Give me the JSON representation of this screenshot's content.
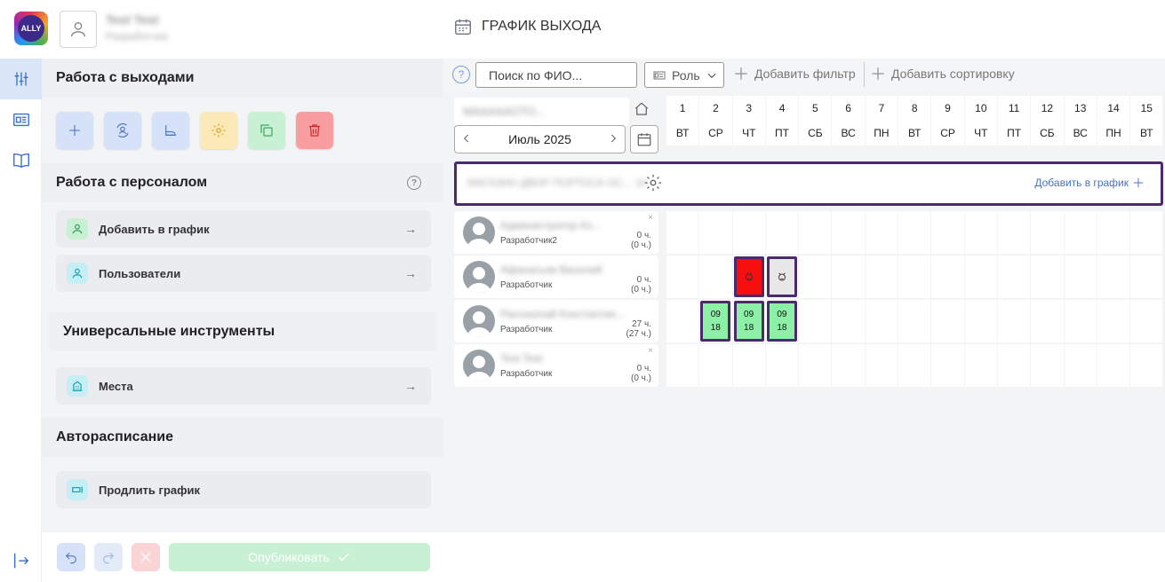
{
  "header": {
    "logo_text": "ALLY",
    "user_name": "Test Test",
    "user_role": "Разработчик",
    "title": "ГРАФИК ВЫХОДА"
  },
  "sidebar": {
    "section1_title": "Работа с выходами",
    "section2_title": "Работа с персоналом",
    "help_glyph": "?",
    "items_personnel": [
      {
        "label": "Добавить в график",
        "icon": "user-plus-icon"
      },
      {
        "label": "Пользователи",
        "icon": "users-icon"
      }
    ],
    "section3_title": "Универсальные инструменты",
    "places_label": "Места",
    "section4_title": "Авторасписание",
    "extend_label": "Продлить график",
    "publish_label": "Опубликовать"
  },
  "filters": {
    "help_glyph": "?",
    "search_placeholder": "Поиск по ФИО...",
    "role_label": "Роль",
    "add_filter_label": "Добавить фильтр",
    "add_sort_label": "Добавить сортировку"
  },
  "schedule": {
    "org_name": "МАААААОТО...",
    "month_label": "Июль 2025",
    "days": [
      {
        "num": "1",
        "wd": "ВТ"
      },
      {
        "num": "2",
        "wd": "СР"
      },
      {
        "num": "3",
        "wd": "ЧТ"
      },
      {
        "num": "4",
        "wd": "ПТ"
      },
      {
        "num": "5",
        "wd": "СБ"
      },
      {
        "num": "6",
        "wd": "ВС"
      },
      {
        "num": "7",
        "wd": "ПН"
      },
      {
        "num": "8",
        "wd": "ВТ"
      },
      {
        "num": "9",
        "wd": "СР"
      },
      {
        "num": "10",
        "wd": "ЧТ"
      },
      {
        "num": "11",
        "wd": "ПТ"
      },
      {
        "num": "12",
        "wd": "СБ"
      },
      {
        "num": "13",
        "wd": "ВС"
      },
      {
        "num": "14",
        "wd": "ПН"
      },
      {
        "num": "15",
        "wd": "ВТ"
      }
    ],
    "team_name": "МАГАЗИН ДВОР ПОРТОСА ОС... 10",
    "team_add_label": "Добавить в график",
    "employees": [
      {
        "name": "Администратор Ко...",
        "role": "Разработчик2",
        "hours": "0 ч.",
        "hours_alt": "(0 ч.)",
        "removable": true
      },
      {
        "name": "Афанасьев Василий",
        "role": "Разработчик",
        "hours": "0 ч.",
        "hours_alt": "(0 ч.)",
        "removable": false
      },
      {
        "name": "Рассказчай Константин...",
        "role": "Разработчик",
        "hours": "27 ч.",
        "hours_alt": "(27 ч.)",
        "removable": false
      },
      {
        "name": "Test Test",
        "role": "Разработчик",
        "hours": "0 ч.",
        "hours_alt": "(0 ч.)",
        "removable": true
      }
    ],
    "shift_start": "09",
    "shift_end": "18",
    "remove_glyph": "×"
  },
  "colors": {
    "accent": "#4a2a6a",
    "work": "#8cf0a6",
    "sick": "#f70f0f",
    "publish": "#c8f0d3"
  }
}
